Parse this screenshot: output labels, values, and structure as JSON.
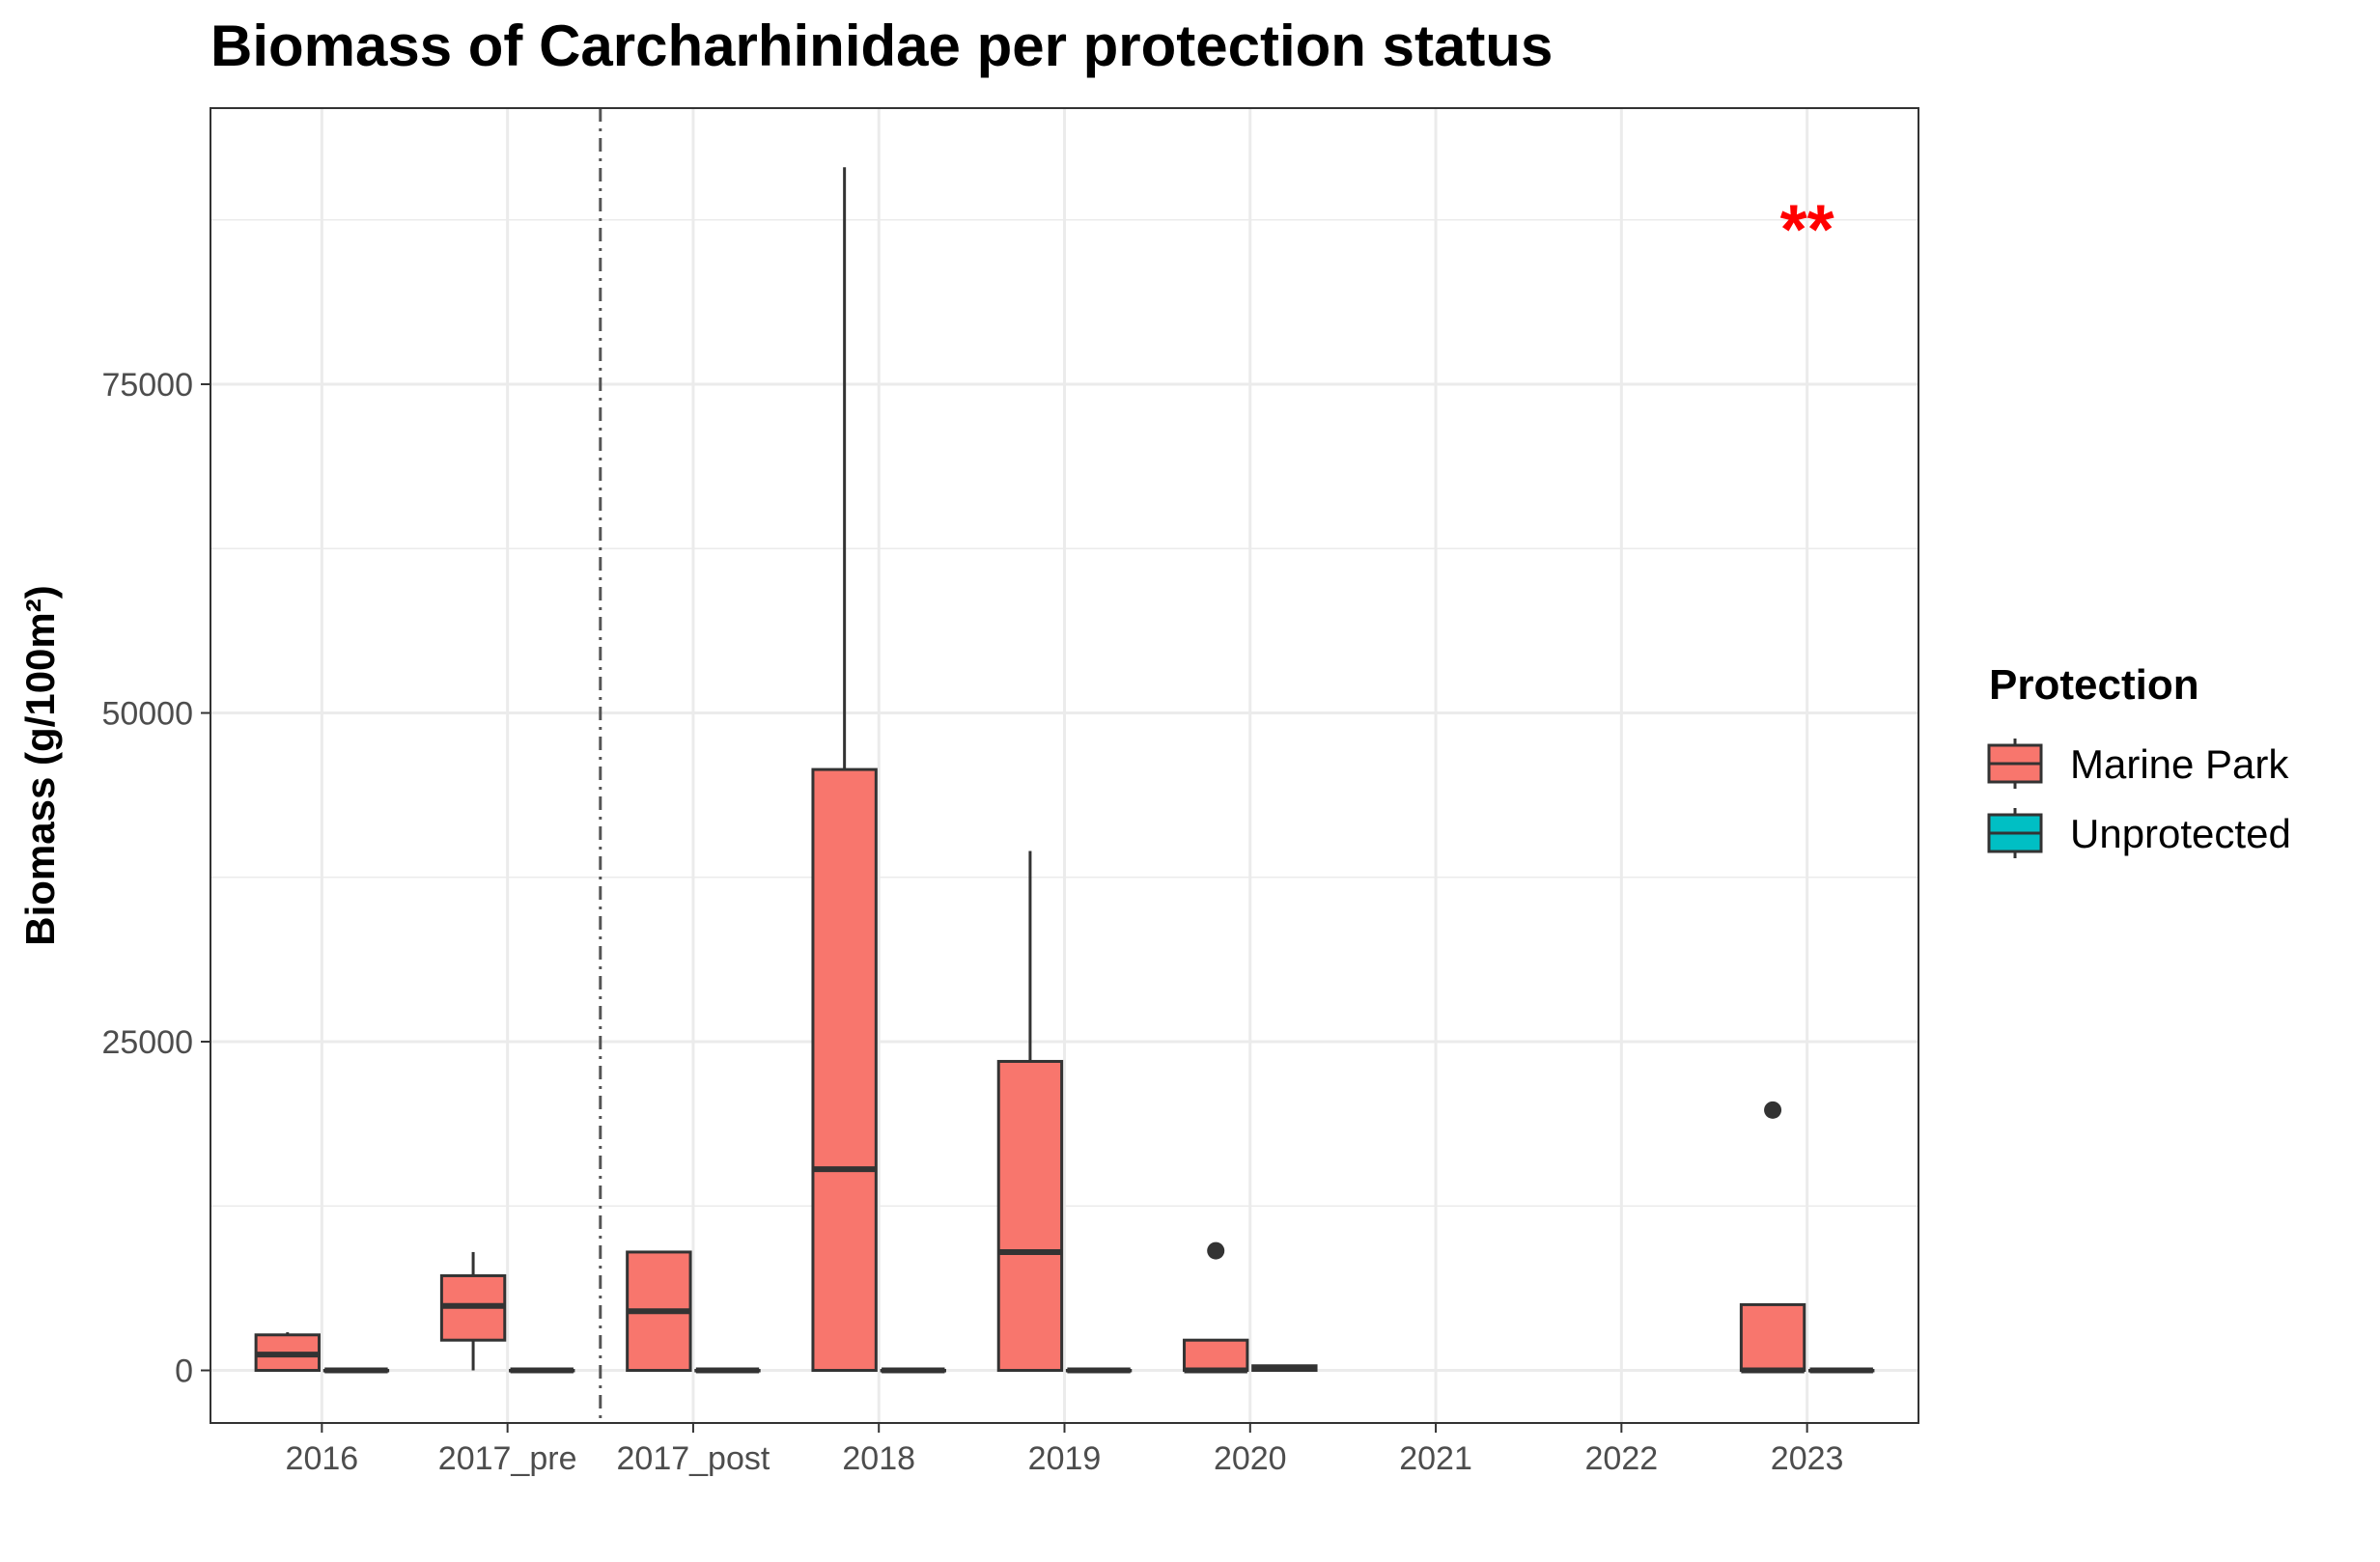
{
  "chart_data": {
    "type": "boxplot",
    "title": "Biomass of Carcharhinidae per protection status",
    "xlabel": "",
    "ylabel": "Biomass (g/100m²)",
    "categories": [
      "2016",
      "2017_pre",
      "2017_post",
      "2018",
      "2019",
      "2020",
      "2021",
      "2022",
      "2023"
    ],
    "ylim": [
      -4000,
      96000
    ],
    "yticks": [
      0,
      25000,
      50000,
      75000
    ],
    "ytick_labels": [
      "0",
      "25000",
      "50000",
      "75000"
    ],
    "grid": true,
    "separator_between": [
      "2017_pre",
      "2017_post"
    ],
    "legend": {
      "title": "Protection",
      "position": "right"
    },
    "series": [
      {
        "name": "Marine Park",
        "color": "#F8766D",
        "boxes": [
          {
            "category": "2016",
            "min": 0,
            "q1": 0,
            "median": 1200,
            "q3": 2700,
            "max": 2900,
            "outliers": []
          },
          {
            "category": "2017_pre",
            "min": 0,
            "q1": 2300,
            "median": 4900,
            "q3": 7200,
            "max": 9000,
            "outliers": []
          },
          {
            "category": "2017_post",
            "min": 0,
            "q1": 0,
            "median": 4500,
            "q3": 9000,
            "max": 9000,
            "outliers": []
          },
          {
            "category": "2018",
            "min": 0,
            "q1": 0,
            "median": 15300,
            "q3": 45700,
            "max": 91500,
            "outliers": []
          },
          {
            "category": "2019",
            "min": 0,
            "q1": 0,
            "median": 9000,
            "q3": 23500,
            "max": 39500,
            "outliers": []
          },
          {
            "category": "2020",
            "min": 0,
            "q1": 0,
            "median": 0,
            "q3": 2300,
            "max": 2300,
            "outliers": [
              9100
            ]
          },
          {
            "category": "2023",
            "min": 0,
            "q1": 0,
            "median": 0,
            "q3": 5000,
            "max": 5000,
            "outliers": [
              19800
            ]
          }
        ]
      },
      {
        "name": "Unprotected",
        "color": "#00BFC4",
        "boxes": [
          {
            "category": "2016",
            "min": 0,
            "q1": 0,
            "median": 0,
            "q3": 0,
            "max": 0,
            "outliers": []
          },
          {
            "category": "2017_pre",
            "min": 0,
            "q1": 0,
            "median": 0,
            "q3": 0,
            "max": 0,
            "outliers": []
          },
          {
            "category": "2017_post",
            "min": 0,
            "q1": 0,
            "median": 0,
            "q3": 0,
            "max": 0,
            "outliers": []
          },
          {
            "category": "2018",
            "min": 0,
            "q1": 0,
            "median": 0,
            "q3": 0,
            "max": 0,
            "outliers": []
          },
          {
            "category": "2019",
            "min": 0,
            "q1": 0,
            "median": 0,
            "q3": 0,
            "max": 0,
            "outliers": []
          },
          {
            "category": "2020",
            "min": 0,
            "q1": 0,
            "median": 150,
            "q3": 350,
            "max": 350,
            "outliers": []
          },
          {
            "category": "2023",
            "min": 0,
            "q1": 0,
            "median": 0,
            "q3": 0,
            "max": 0,
            "outliers": []
          }
        ]
      }
    ],
    "annotations": [
      {
        "category": "2023",
        "text": "**",
        "y": 87000,
        "color": "#FF0000"
      }
    ]
  }
}
